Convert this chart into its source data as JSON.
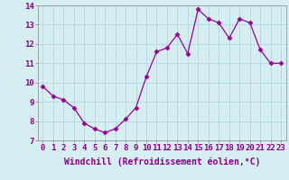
{
  "x": [
    0,
    1,
    2,
    3,
    4,
    5,
    6,
    7,
    8,
    9,
    10,
    11,
    12,
    13,
    14,
    15,
    16,
    17,
    18,
    19,
    20,
    21,
    22,
    23
  ],
  "y": [
    9.8,
    9.3,
    9.1,
    8.7,
    7.9,
    7.6,
    7.4,
    7.6,
    8.1,
    8.7,
    10.3,
    11.6,
    11.8,
    12.5,
    11.5,
    13.8,
    13.3,
    13.1,
    12.3,
    13.3,
    13.1,
    11.7,
    11.0,
    11.0
  ],
  "line_color": "#990099",
  "marker": "D",
  "marker_size": 2.5,
  "line_width": 0.9,
  "bg_color": "#d5eef2",
  "grid_color": "#b0d8e0",
  "xlabel": "Windchill (Refroidissement éolien,°C)",
  "xlabel_fontsize": 7,
  "tick_fontsize": 6.5,
  "ylim": [
    7,
    14
  ],
  "xlim": [
    -0.5,
    23.5
  ],
  "yticks": [
    7,
    8,
    9,
    10,
    11,
    12,
    13,
    14
  ],
  "xticks": [
    0,
    1,
    2,
    3,
    4,
    5,
    6,
    7,
    8,
    9,
    10,
    11,
    12,
    13,
    14,
    15,
    16,
    17,
    18,
    19,
    20,
    21,
    22,
    23
  ]
}
